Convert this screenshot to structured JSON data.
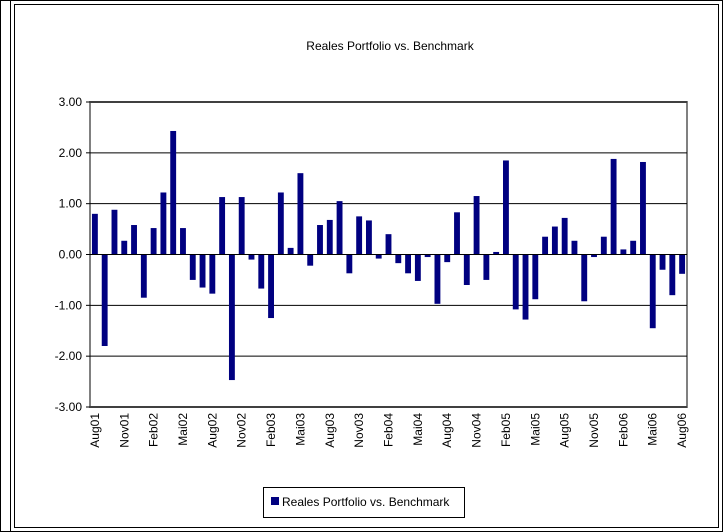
{
  "chart_data": {
    "type": "bar",
    "title": "Reales Portfolio vs. Benchmark",
    "categories": [
      "Aug01",
      null,
      null,
      "Nov01",
      null,
      null,
      "Feb02",
      null,
      null,
      "Mai02",
      null,
      null,
      "Aug02",
      null,
      null,
      "Nov02",
      null,
      null,
      "Feb03",
      null,
      null,
      "Mai03",
      null,
      null,
      "Aug03",
      null,
      null,
      "Nov03",
      null,
      null,
      "Feb04",
      null,
      null,
      "Mai04",
      null,
      null,
      "Aug04",
      null,
      null,
      "Nov04",
      null,
      null,
      "Feb05",
      null,
      null,
      "Mai05",
      null,
      null,
      "Aug05",
      null,
      null,
      "Nov05",
      null,
      null,
      "Feb06",
      null,
      null,
      "Mai06",
      null,
      null,
      "Aug06"
    ],
    "series": [
      {
        "name": "Reales Portfolio vs. Benchmark",
        "color": "#000080",
        "values": [
          0.8,
          -1.8,
          0.88,
          0.27,
          0.58,
          -0.85,
          0.52,
          1.22,
          2.43,
          0.52,
          -0.5,
          -0.65,
          -0.77,
          1.13,
          -2.47,
          1.13,
          -0.1,
          -0.67,
          -1.25,
          1.22,
          0.13,
          1.6,
          -0.22,
          0.58,
          0.68,
          1.05,
          -0.37,
          0.75,
          0.67,
          -0.08,
          0.4,
          -0.17,
          -0.37,
          -0.52,
          -0.05,
          -0.97,
          -0.15,
          0.83,
          -0.6,
          1.15,
          -0.5,
          0.05,
          1.85,
          -1.08,
          -1.28,
          -0.88,
          0.35,
          0.55,
          0.72,
          0.27,
          -0.92,
          -0.05,
          0.35,
          1.88,
          0.1,
          0.27,
          1.82,
          -1.45,
          -0.3,
          -0.8,
          -0.38
        ]
      }
    ],
    "ylim": [
      -3,
      3
    ],
    "yticks": [
      {
        "value": -3,
        "label": "-3.00"
      },
      {
        "value": -2,
        "label": "-2.00"
      },
      {
        "value": -1,
        "label": "-1.00"
      },
      {
        "value": 0,
        "label": "0.00"
      },
      {
        "value": 1,
        "label": "1.00"
      },
      {
        "value": 2,
        "label": "2.00"
      },
      {
        "value": 3,
        "label": "3.00"
      }
    ],
    "grid": true,
    "legend": "bottom"
  }
}
